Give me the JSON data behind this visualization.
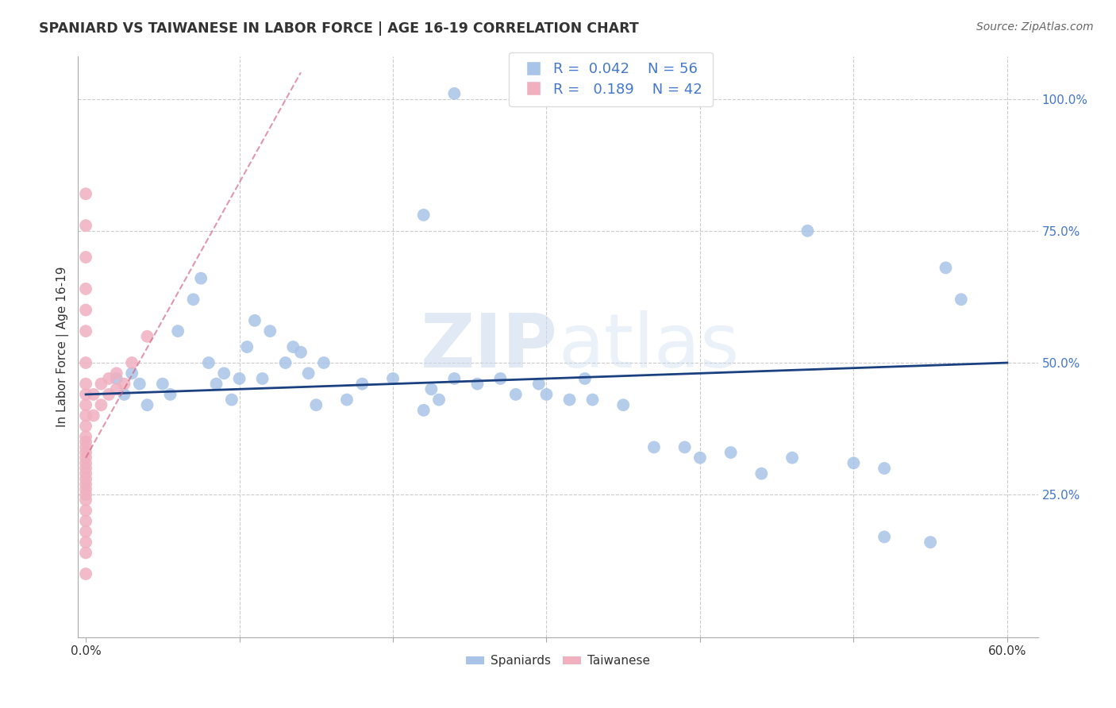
{
  "title": "SPANIARD VS TAIWANESE IN LABOR FORCE | AGE 16-19 CORRELATION CHART",
  "source": "Source: ZipAtlas.com",
  "ylabel": "In Labor Force | Age 16-19",
  "xlim": [
    -0.005,
    0.62
  ],
  "ylim": [
    -0.02,
    1.08
  ],
  "xtick_positions": [
    0.0,
    0.1,
    0.2,
    0.3,
    0.4,
    0.5,
    0.6
  ],
  "xticklabels": [
    "0.0%",
    "",
    "",
    "",
    "",
    "",
    "60.0%"
  ],
  "ytick_positions": [
    0.0,
    0.25,
    0.5,
    0.75,
    1.0
  ],
  "yticklabels": [
    "",
    "25.0%",
    "50.0%",
    "75.0%",
    "100.0%"
  ],
  "legend_r_spaniard": "0.042",
  "legend_n_spaniard": "56",
  "legend_r_taiwanese": "0.189",
  "legend_n_taiwanese": "42",
  "spaniard_color": "#a8c4e8",
  "taiwanese_color": "#f0b0c0",
  "trend_spaniard_color": "#1a4080",
  "trend_taiwanese_color": "#d06080",
  "watermark_zip": "ZIP",
  "watermark_atlas": "atlas",
  "spaniard_x": [
    0.02,
    0.025,
    0.03,
    0.035,
    0.04,
    0.05,
    0.055,
    0.06,
    0.07,
    0.075,
    0.08,
    0.085,
    0.09,
    0.095,
    0.1,
    0.105,
    0.11,
    0.115,
    0.12,
    0.13,
    0.135,
    0.14,
    0.145,
    0.15,
    0.155,
    0.17,
    0.18,
    0.2,
    0.22,
    0.225,
    0.23,
    0.24,
    0.255,
    0.27,
    0.28,
    0.295,
    0.3,
    0.315,
    0.325,
    0.33,
    0.35,
    0.37,
    0.39,
    0.4,
    0.42,
    0.44,
    0.46,
    0.5,
    0.52,
    0.55,
    0.57,
    0.22,
    0.24,
    0.47,
    0.52,
    0.56
  ],
  "spaniard_y": [
    0.47,
    0.44,
    0.48,
    0.46,
    0.42,
    0.46,
    0.44,
    0.56,
    0.62,
    0.66,
    0.5,
    0.46,
    0.48,
    0.43,
    0.47,
    0.53,
    0.58,
    0.47,
    0.56,
    0.5,
    0.53,
    0.52,
    0.48,
    0.42,
    0.5,
    0.43,
    0.46,
    0.47,
    0.41,
    0.45,
    0.43,
    0.47,
    0.46,
    0.47,
    0.44,
    0.46,
    0.44,
    0.43,
    0.47,
    0.43,
    0.42,
    0.34,
    0.34,
    0.32,
    0.33,
    0.29,
    0.32,
    0.31,
    0.17,
    0.16,
    0.62,
    0.78,
    1.01,
    0.75,
    0.3,
    0.68
  ],
  "taiwanese_x": [
    0.0,
    0.0,
    0.0,
    0.0,
    0.0,
    0.0,
    0.0,
    0.0,
    0.0,
    0.0,
    0.0,
    0.0,
    0.0,
    0.0,
    0.0,
    0.0,
    0.0,
    0.0,
    0.0,
    0.0,
    0.0,
    0.0,
    0.0,
    0.0,
    0.0,
    0.0,
    0.0,
    0.0,
    0.0,
    0.0,
    0.0
  ],
  "taiwanese_y": [
    0.82,
    0.76,
    0.7,
    0.64,
    0.6,
    0.56,
    0.5,
    0.46,
    0.44,
    0.42,
    0.4,
    0.38,
    0.36,
    0.35,
    0.34,
    0.33,
    0.32,
    0.31,
    0.3,
    0.29,
    0.28,
    0.27,
    0.26,
    0.25,
    0.24,
    0.22,
    0.2,
    0.18,
    0.16,
    0.14,
    0.1
  ],
  "tw_extra_x": [
    0.005,
    0.005,
    0.01,
    0.01,
    0.015,
    0.015,
    0.02,
    0.02,
    0.025,
    0.03,
    0.04
  ],
  "tw_extra_y": [
    0.44,
    0.4,
    0.46,
    0.42,
    0.47,
    0.44,
    0.48,
    0.45,
    0.46,
    0.5,
    0.55
  ],
  "spaniard_trend_x0": 0.0,
  "spaniard_trend_y0": 0.44,
  "spaniard_trend_x1": 0.6,
  "spaniard_trend_y1": 0.5,
  "taiwanese_trend_x0": 0.0,
  "taiwanese_trend_y0": 0.32,
  "taiwanese_trend_x1": 0.14,
  "taiwanese_trend_y1": 1.05
}
